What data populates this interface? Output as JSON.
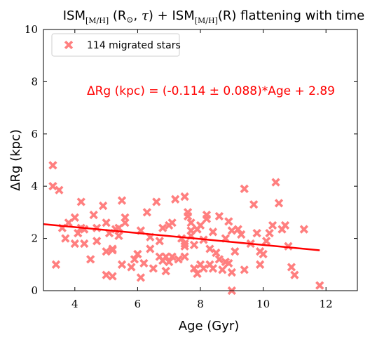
{
  "chart_data": {
    "type": "scatter",
    "title": {
      "part1": "ISM",
      "part1_sub": "[M/H]",
      "part2": " (R",
      "part2_sym": "⊙",
      "part3": ", ",
      "part3_sym": "τ",
      "part4": ") + ISM",
      "part4_sub": "[M/H]",
      "part5": "(R) flattening with time"
    },
    "xlabel": "Age (Gyr)",
    "ylabel": "ΔRg (kpc)",
    "xlim": [
      3.0,
      13.0
    ],
    "ylim": [
      0,
      10
    ],
    "xticks": [
      4,
      6,
      8,
      10,
      12
    ],
    "yticks": [
      0,
      2,
      4,
      6,
      8,
      10
    ],
    "grid": false,
    "legend": {
      "placement": "top-left",
      "entries": [
        "114 migrated stars"
      ]
    },
    "annotation": "ΔRg (kpc) = (-0.114 ± 0.088)*Age + 2.89",
    "colors": {
      "points": "#ff7f7f",
      "fit_line": "#ff0000",
      "annotation": "#ff0000"
    },
    "series": [
      {
        "name": "114 migrated stars",
        "marker": "X",
        "x": [
          3.3,
          3.3,
          3.4,
          3.5,
          3.7,
          3.8,
          4.0,
          4.0,
          4.1,
          4.2,
          4.2,
          4.3,
          4.5,
          4.6,
          4.7,
          4.7,
          4.9,
          5.0,
          5.0,
          5.0,
          5.1,
          5.2,
          5.2,
          5.3,
          5.4,
          5.4,
          5.5,
          5.5,
          5.6,
          5.6,
          5.8,
          5.9,
          6.0,
          6.1,
          6.1,
          6.3,
          6.4,
          6.4,
          6.5,
          6.6,
          6.7,
          6.7,
          6.8,
          6.8,
          6.9,
          6.9,
          7.0,
          7.1,
          7.1,
          7.2,
          7.3,
          7.4,
          7.5,
          7.5,
          7.5,
          7.6,
          7.6,
          7.7,
          7.7,
          7.7,
          7.8,
          7.8,
          7.9,
          7.9,
          8.0,
          8.0,
          8.1,
          8.2,
          8.2,
          8.3,
          8.3,
          8.4,
          8.4,
          8.5,
          8.6,
          8.6,
          8.7,
          8.8,
          8.8,
          8.9,
          8.9,
          9.0,
          9.0,
          9.0,
          9.1,
          9.2,
          9.3,
          9.4,
          9.4,
          9.6,
          9.7,
          9.9,
          9.9,
          10.0,
          10.1,
          10.3,
          10.4,
          10.5,
          10.6,
          10.7,
          10.8,
          10.9,
          11.0,
          11.3,
          11.8,
          3.6,
          4.3,
          5.2,
          6.2,
          7.0,
          8.1,
          9.8,
          10.2,
          7.5
        ],
        "y": [
          4.8,
          4.0,
          1.0,
          3.85,
          2.0,
          2.6,
          1.8,
          2.8,
          2.2,
          2.4,
          3.4,
          1.8,
          1.2,
          2.9,
          2.4,
          1.9,
          3.25,
          0.6,
          1.5,
          2.6,
          2.2,
          1.6,
          0.55,
          2.35,
          2.1,
          2.4,
          3.45,
          1.0,
          2.6,
          2.8,
          0.9,
          1.2,
          1.4,
          2.3,
          0.5,
          3.0,
          2.05,
          1.6,
          0.85,
          3.4,
          1.9,
          1.3,
          2.4,
          1.15,
          1.3,
          0.75,
          1.1,
          2.6,
          1.3,
          3.5,
          1.2,
          2.0,
          1.8,
          3.6,
          1.3,
          3.0,
          2.85,
          2.3,
          2.1,
          2.6,
          0.85,
          1.75,
          0.65,
          2.35,
          1.0,
          2.5,
          0.85,
          2.9,
          2.75,
          1.6,
          1.0,
          0.85,
          2.25,
          1.45,
          1.2,
          2.85,
          0.8,
          1.1,
          2.0,
          2.65,
          1.05,
          2.3,
          0.7,
          0.0,
          1.5,
          2.35,
          2.15,
          0.8,
          3.9,
          1.8,
          3.3,
          1.0,
          1.5,
          1.4,
          1.9,
          2.5,
          4.15,
          3.35,
          2.35,
          2.5,
          1.7,
          0.9,
          0.6,
          2.35,
          0.2,
          2.4,
          2.35,
          1.55,
          1.05,
          2.5,
          1.95,
          2.2,
          2.2,
          1.7
        ]
      }
    ],
    "fit": {
      "slope": -0.114,
      "intercept": 2.89,
      "x_range": [
        3.0,
        11.8
      ]
    }
  }
}
